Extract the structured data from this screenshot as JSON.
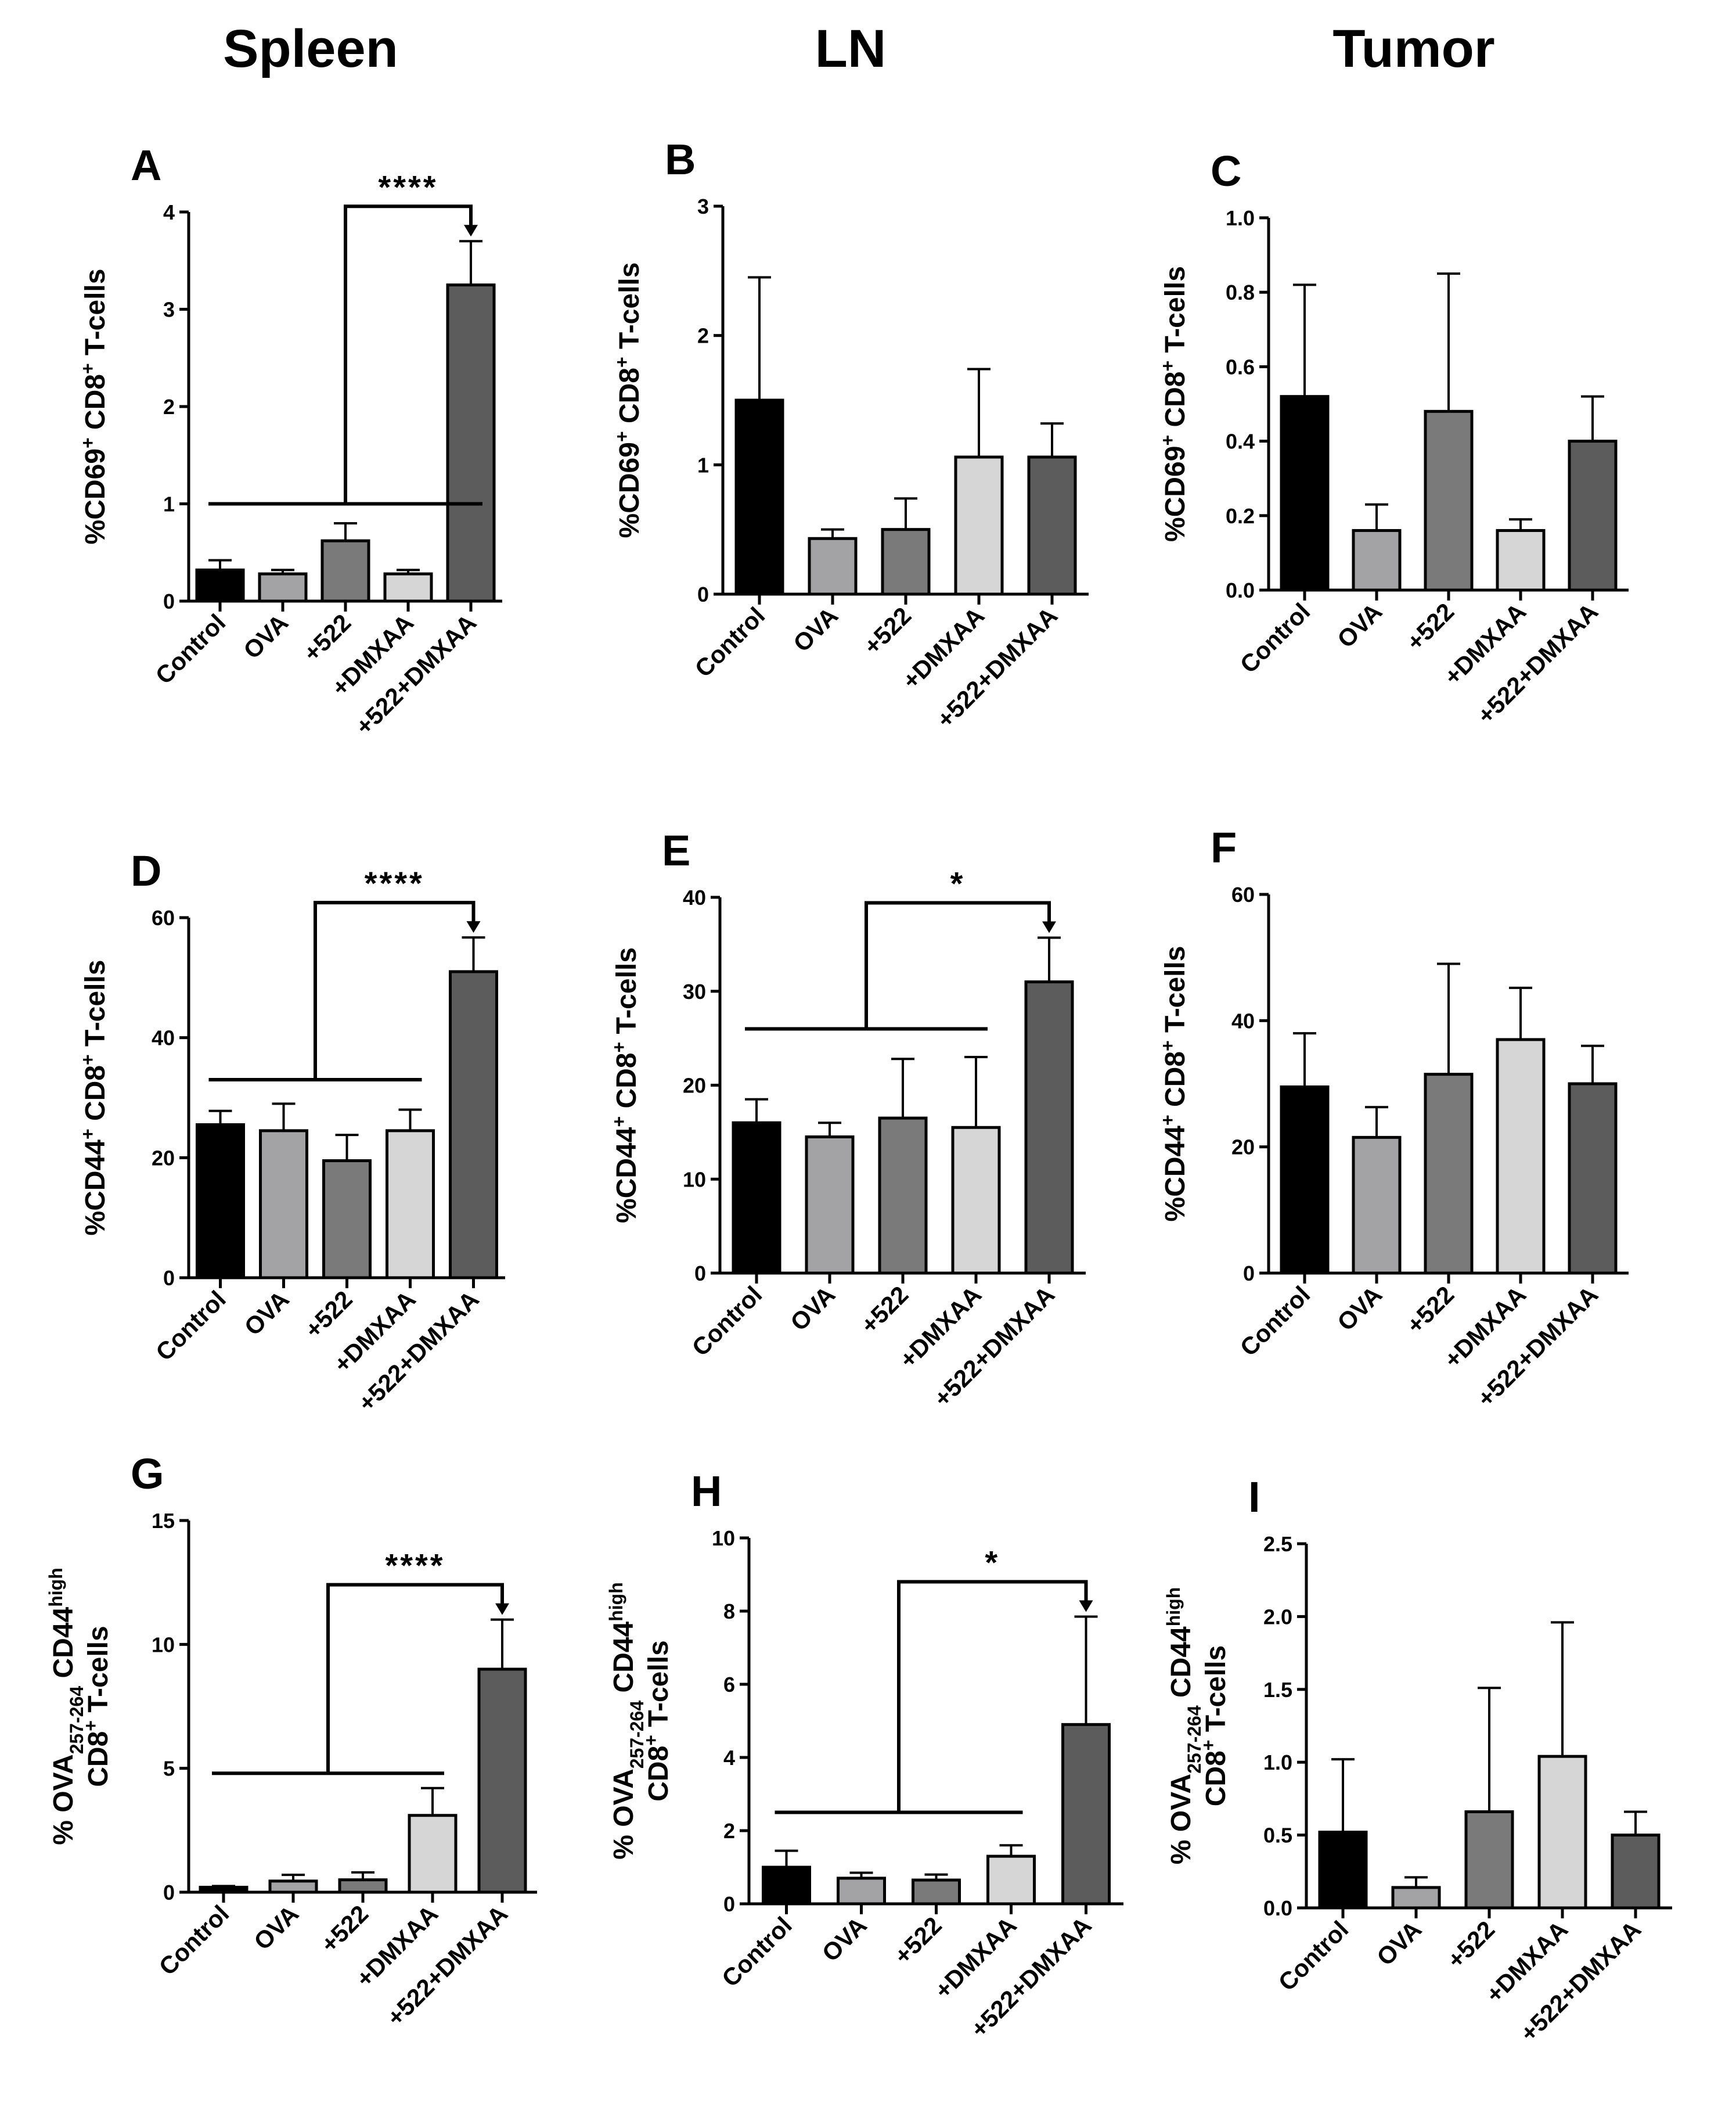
{
  "column_headers": [
    "Spleen",
    "LN",
    "Tumor"
  ],
  "colors": {
    "Control": "#000000",
    "OVA": "#a3a3a6",
    "+522": "#7a7a7a",
    "+DMXAA": "#d6d6d6",
    "+522+DMXAA": "#5c5c5c"
  },
  "chart_data": [
    {
      "type": "bar",
      "panel": "A",
      "categories": [
        "Control",
        "OVA",
        "+522",
        "+DMXAA",
        "+522+DMXAA"
      ],
      "values": [
        0.32,
        0.28,
        0.62,
        0.28,
        3.25
      ],
      "errors": [
        0.1,
        0.04,
        0.18,
        0.04,
        0.45
      ],
      "ylim": [
        0,
        4
      ],
      "yticks": [
        "0",
        "1",
        "2",
        "3",
        "4"
      ],
      "ylabel": {
        "parts": [
          "%CD69",
          "+",
          " CD8",
          "+",
          " T-cells"
        ]
      },
      "significance": {
        "label": "****",
        "group_to": 4,
        "ref_value": 1.0
      }
    },
    {
      "type": "bar",
      "panel": "B",
      "categories": [
        "Control",
        "OVA",
        "+522",
        "+DMXAA",
        "+522+DMXAA"
      ],
      "values": [
        1.5,
        0.43,
        0.5,
        1.06,
        1.06
      ],
      "errors": [
        0.95,
        0.07,
        0.24,
        0.68,
        0.26
      ],
      "ylim": [
        0,
        3
      ],
      "yticks": [
        "0",
        "1",
        "2",
        "3"
      ],
      "ylabel": {
        "parts": [
          "%CD69",
          "+",
          " CD8",
          "+",
          " T-cells"
        ]
      }
    },
    {
      "type": "bar",
      "panel": "C",
      "categories": [
        "Control",
        "OVA",
        "+522",
        "+DMXAA",
        "+522+DMXAA"
      ],
      "values": [
        0.52,
        0.16,
        0.48,
        0.16,
        0.4
      ],
      "errors": [
        0.3,
        0.07,
        0.37,
        0.03,
        0.12
      ],
      "ylim": [
        0,
        1.0
      ],
      "yticks": [
        "0.0",
        "0.2",
        "0.4",
        "0.6",
        "0.8",
        "1.0"
      ],
      "ylabel": {
        "parts": [
          "%CD69",
          "+",
          " CD8",
          "+",
          " T-cells"
        ]
      }
    },
    {
      "type": "bar",
      "panel": "D",
      "categories": [
        "Control",
        "OVA",
        "+522",
        "+DMXAA",
        "+522+DMXAA"
      ],
      "values": [
        25.5,
        24.5,
        19.5,
        24.5,
        51.0
      ],
      "errors": [
        2.3,
        4.5,
        4.3,
        3.5,
        5.7
      ],
      "ylim": [
        0,
        60
      ],
      "yticks": [
        "0",
        "20",
        "40",
        "60"
      ],
      "ylabel": {
        "parts": [
          "%CD44",
          "+",
          " CD8",
          "+",
          " T-cells"
        ]
      },
      "significance": {
        "label": "****",
        "group_to": 3,
        "ref_value": 33.0
      }
    },
    {
      "type": "bar",
      "panel": "E",
      "categories": [
        "Control",
        "OVA",
        "+522",
        "+DMXAA",
        "+522+DMXAA"
      ],
      "values": [
        16.0,
        14.5,
        16.5,
        15.5,
        31.0
      ],
      "errors": [
        2.5,
        1.5,
        6.3,
        7.5,
        4.7
      ],
      "ylim": [
        0,
        40
      ],
      "yticks": [
        "0",
        "10",
        "20",
        "30",
        "40"
      ],
      "ylabel": {
        "parts": [
          "%CD44",
          "+",
          " CD8",
          "+",
          " T-cells"
        ]
      },
      "significance": {
        "label": "*",
        "group_to": 3,
        "ref_value": 26.0
      }
    },
    {
      "type": "bar",
      "panel": "F",
      "categories": [
        "Control",
        "OVA",
        "+522",
        "+DMXAA",
        "+522+DMXAA"
      ],
      "values": [
        29.5,
        21.5,
        31.5,
        37.0,
        30.0
      ],
      "errors": [
        8.5,
        4.8,
        17.5,
        8.2,
        6.0
      ],
      "ylim": [
        0,
        60
      ],
      "yticks": [
        "0",
        "20",
        "40",
        "60"
      ],
      "ylabel": {
        "parts": [
          "%CD44",
          "+",
          " CD8",
          "+",
          " T-cells"
        ]
      }
    },
    {
      "type": "bar",
      "panel": "G",
      "categories": [
        "Control",
        "OVA",
        "+522",
        "+DMXAA",
        "+522+DMXAA"
      ],
      "values": [
        0.2,
        0.45,
        0.5,
        3.1,
        9.0
      ],
      "errors": [
        0.05,
        0.25,
        0.3,
        1.1,
        2.0
      ],
      "ylim": [
        0,
        15
      ],
      "yticks": [
        "0",
        "5",
        "10",
        "15"
      ],
      "ylabel": {
        "line1": [
          "% OVA",
          "257-264",
          " CD44",
          "high"
        ],
        "line2": [
          "CD8",
          "+",
          " T-cells"
        ]
      },
      "significance": {
        "label": "****",
        "group_to": 3,
        "ref_value": 4.8
      }
    },
    {
      "type": "bar",
      "panel": "H",
      "categories": [
        "Control",
        "OVA",
        "+522",
        "+DMXAA",
        "+522+DMXAA"
      ],
      "values": [
        1.0,
        0.7,
        0.65,
        1.3,
        4.9
      ],
      "errors": [
        0.45,
        0.15,
        0.15,
        0.3,
        2.95
      ],
      "ylim": [
        0,
        10
      ],
      "yticks": [
        "0",
        "2",
        "4",
        "6",
        "8",
        "10"
      ],
      "ylabel": {
        "line1": [
          "% OVA",
          "257-264",
          " CD44",
          "high"
        ],
        "line2": [
          "CD8",
          "+",
          " T-cells"
        ]
      },
      "significance": {
        "label": "*",
        "group_to": 3,
        "ref_value": 2.5
      }
    },
    {
      "type": "bar",
      "panel": "I",
      "categories": [
        "Control",
        "OVA",
        "+522",
        "+DMXAA",
        "+522+DMXAA"
      ],
      "values": [
        0.52,
        0.14,
        0.66,
        1.04,
        0.5
      ],
      "errors": [
        0.5,
        0.07,
        0.85,
        0.92,
        0.16
      ],
      "ylim": [
        0,
        2.5
      ],
      "yticks": [
        "0.0",
        "0.5",
        "1.0",
        "1.5",
        "2.0",
        "2.5"
      ],
      "ylabel": {
        "line1": [
          "% OVA",
          "257-264",
          " CD44",
          "high"
        ],
        "line2": [
          "CD8",
          "+",
          " T-cells"
        ]
      }
    }
  ]
}
